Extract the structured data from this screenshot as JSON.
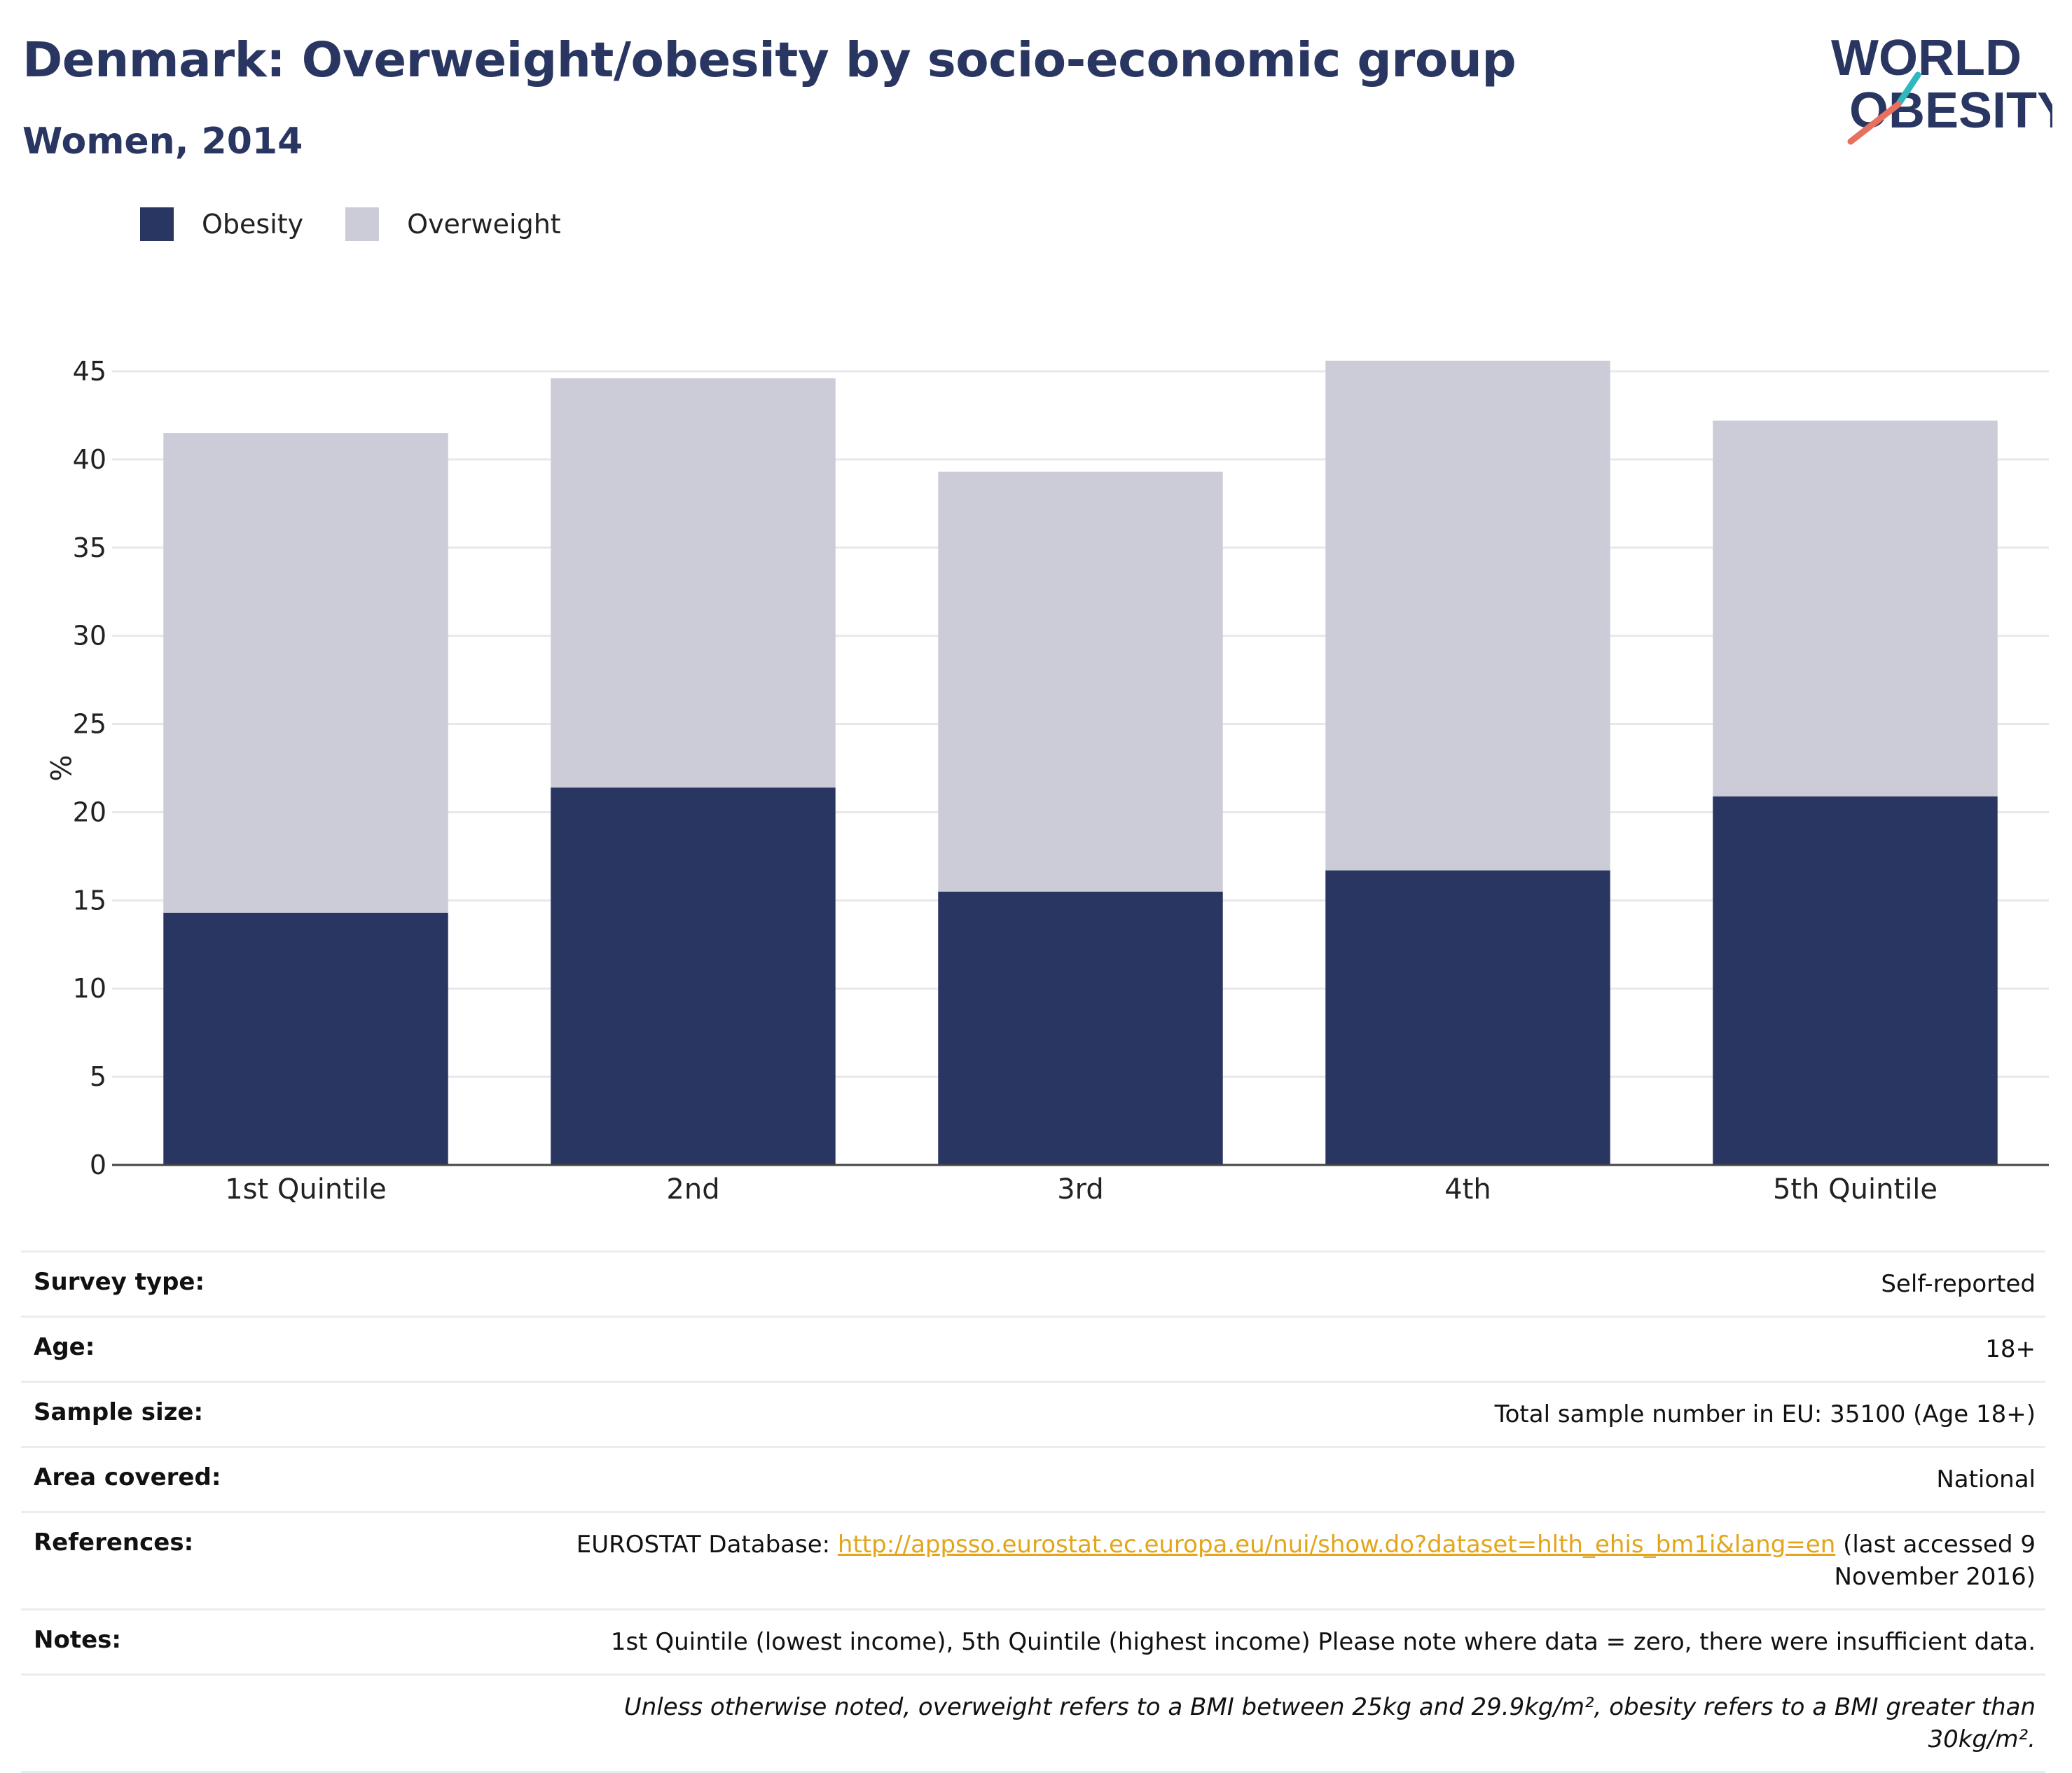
{
  "header": {
    "title": "Denmark: Overweight/obesity by socio-economic group",
    "subtitle": "Women, 2014"
  },
  "logo": {
    "line1": "WORLD",
    "line2": "OBESITY",
    "icon": "world-obesity-logo"
  },
  "colors": {
    "obesity": "#2a3662",
    "overweight": "#cbccd7",
    "accent_teal": "#2fb8bd",
    "accent_coral": "#e8705f",
    "link": "#e3a51a"
  },
  "chart_data": {
    "type": "bar",
    "stacked": true,
    "categories": [
      "1st Quintile",
      "2nd",
      "3rd",
      "4th",
      "5th Quintile"
    ],
    "series": [
      {
        "name": "Obesity",
        "values": [
          14.3,
          21.4,
          15.5,
          16.7,
          20.9
        ]
      },
      {
        "name": "Overweight",
        "values": [
          27.2,
          23.2,
          23.8,
          28.9,
          21.3
        ]
      }
    ],
    "xlabel": "",
    "ylabel": "%",
    "ylim": [
      0,
      45
    ],
    "yticks": [
      0,
      5,
      10,
      15,
      20,
      25,
      30,
      35,
      40,
      45
    ],
    "grid": true,
    "legend": "top-left"
  },
  "info": {
    "survey_type": {
      "label": "Survey type:",
      "value": "Self-reported"
    },
    "age": {
      "label": "Age:",
      "value": "18+"
    },
    "sample_size": {
      "label": "Sample size:",
      "value": "Total sample number in EU: 35100 (Age 18+)"
    },
    "area": {
      "label": "Area covered:",
      "value": "National"
    },
    "references": {
      "label": "References:",
      "prefix": "EUROSTAT Database: ",
      "link_text": "http://appsso.eurostat.ec.europa.eu/nui/show.do?dataset=hlth_ehis_bm1i&lang=en",
      "suffix": " (last accessed 9 November 2016)"
    },
    "notes": {
      "label": "Notes:",
      "value": "1st Quintile (lowest income), 5th Quintile (highest income) Please note where data = zero, there were insufficient data."
    },
    "footnote": "Unless otherwise noted, overweight refers to a BMI between 25kg and 29.9kg/m², obesity refers to a BMI greater than 30kg/m²."
  }
}
